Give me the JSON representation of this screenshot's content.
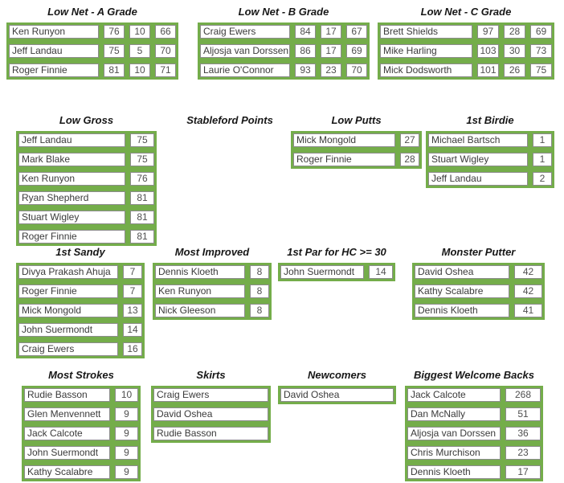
{
  "colors": {
    "table_green": "#74ad4a",
    "cell_border": "#8c8c8c",
    "title_text": "#171717",
    "cell_text": "#3a3a3a"
  },
  "sections": {
    "low_net_a": {
      "title": "Low Net - A Grade",
      "rows": [
        {
          "name": "Ken Runyon",
          "values": [
            "76",
            "10",
            "66"
          ]
        },
        {
          "name": "Jeff Landau",
          "values": [
            "75",
            "5",
            "70"
          ]
        },
        {
          "name": "Roger Finnie",
          "values": [
            "81",
            "10",
            "71"
          ]
        }
      ]
    },
    "low_net_b": {
      "title": "Low Net - B Grade",
      "rows": [
        {
          "name": "Craig Ewers",
          "values": [
            "84",
            "17",
            "67"
          ]
        },
        {
          "name": "Aljosja van Dorssen",
          "values": [
            "86",
            "17",
            "69"
          ]
        },
        {
          "name": "Laurie O'Connor",
          "values": [
            "93",
            "23",
            "70"
          ]
        }
      ]
    },
    "low_net_c": {
      "title": "Low Net - C Grade",
      "rows": [
        {
          "name": "Brett Shields",
          "values": [
            "97",
            "28",
            "69"
          ]
        },
        {
          "name": "Mike Harling",
          "values": [
            "103",
            "30",
            "73"
          ]
        },
        {
          "name": "Mick Dodsworth",
          "values": [
            "101",
            "26",
            "75"
          ]
        }
      ]
    },
    "low_gross": {
      "title": "Low Gross",
      "rows": [
        {
          "name": "Jeff Landau",
          "values": [
            "75"
          ]
        },
        {
          "name": "Mark Blake",
          "values": [
            "75"
          ]
        },
        {
          "name": "Ken Runyon",
          "values": [
            "76"
          ]
        },
        {
          "name": "Ryan Shepherd",
          "values": [
            "81"
          ]
        },
        {
          "name": "Stuart Wigley",
          "values": [
            "81"
          ]
        },
        {
          "name": "Roger Finnie",
          "values": [
            "81"
          ]
        }
      ]
    },
    "stableford": {
      "title": "Stableford Points",
      "rows": []
    },
    "low_putts": {
      "title": "Low Putts",
      "rows": [
        {
          "name": "Mick Mongold",
          "values": [
            "27"
          ]
        },
        {
          "name": "Roger Finnie",
          "values": [
            "28"
          ]
        }
      ]
    },
    "first_birdie": {
      "title": "1st Birdie",
      "rows": [
        {
          "name": "Michael Bartsch",
          "values": [
            "1"
          ]
        },
        {
          "name": "Stuart Wigley",
          "values": [
            "1"
          ]
        },
        {
          "name": "Jeff Landau",
          "values": [
            "2"
          ]
        }
      ]
    },
    "first_sandy": {
      "title": "1st Sandy",
      "rows": [
        {
          "name": "Divya Prakash Ahuja",
          "values": [
            "7"
          ]
        },
        {
          "name": "Roger Finnie",
          "values": [
            "7"
          ]
        },
        {
          "name": "Mick Mongold",
          "values": [
            "13"
          ]
        },
        {
          "name": "John Suermondt",
          "values": [
            "14"
          ]
        },
        {
          "name": "Craig Ewers",
          "values": [
            "16"
          ]
        }
      ]
    },
    "most_improved": {
      "title": "Most Improved",
      "rows": [
        {
          "name": "Dennis Kloeth",
          "values": [
            "8"
          ]
        },
        {
          "name": "Ken Runyon",
          "values": [
            "8"
          ]
        },
        {
          "name": "Nick Gleeson",
          "values": [
            "8"
          ]
        }
      ]
    },
    "first_par_hc30": {
      "title": "1st Par for HC >= 30",
      "rows": [
        {
          "name": "John Suermondt",
          "values": [
            "14"
          ]
        }
      ]
    },
    "monster_putter": {
      "title": "Monster Putter",
      "rows": [
        {
          "name": "David Oshea",
          "values": [
            "42"
          ]
        },
        {
          "name": "Kathy Scalabre",
          "values": [
            "42"
          ]
        },
        {
          "name": "Dennis Kloeth",
          "values": [
            "41"
          ]
        }
      ]
    },
    "most_strokes": {
      "title": "Most Strokes",
      "rows": [
        {
          "name": "Rudie Basson",
          "values": [
            "10"
          ]
        },
        {
          "name": "Glen Menvennett",
          "values": [
            "9"
          ]
        },
        {
          "name": "Jack Calcote",
          "values": [
            "9"
          ]
        },
        {
          "name": "John Suermondt",
          "values": [
            "9"
          ]
        },
        {
          "name": "Kathy Scalabre",
          "values": [
            "9"
          ]
        }
      ]
    },
    "skirts": {
      "title": "Skirts",
      "rows": [
        {
          "name": "Craig Ewers",
          "values": []
        },
        {
          "name": "David Oshea",
          "values": []
        },
        {
          "name": "Rudie Basson",
          "values": []
        }
      ]
    },
    "newcomers": {
      "title": "Newcomers",
      "rows": [
        {
          "name": "David Oshea",
          "values": []
        }
      ]
    },
    "biggest_welcome_backs": {
      "title": "Biggest Welcome Backs",
      "rows": [
        {
          "name": "Jack Calcote",
          "values": [
            "268"
          ]
        },
        {
          "name": "Dan McNally",
          "values": [
            "51"
          ]
        },
        {
          "name": "Aljosja van Dorssen",
          "values": [
            "36"
          ]
        },
        {
          "name": "Chris Murchison",
          "values": [
            "23"
          ]
        },
        {
          "name": "Dennis Kloeth",
          "values": [
            "17"
          ]
        }
      ]
    }
  }
}
